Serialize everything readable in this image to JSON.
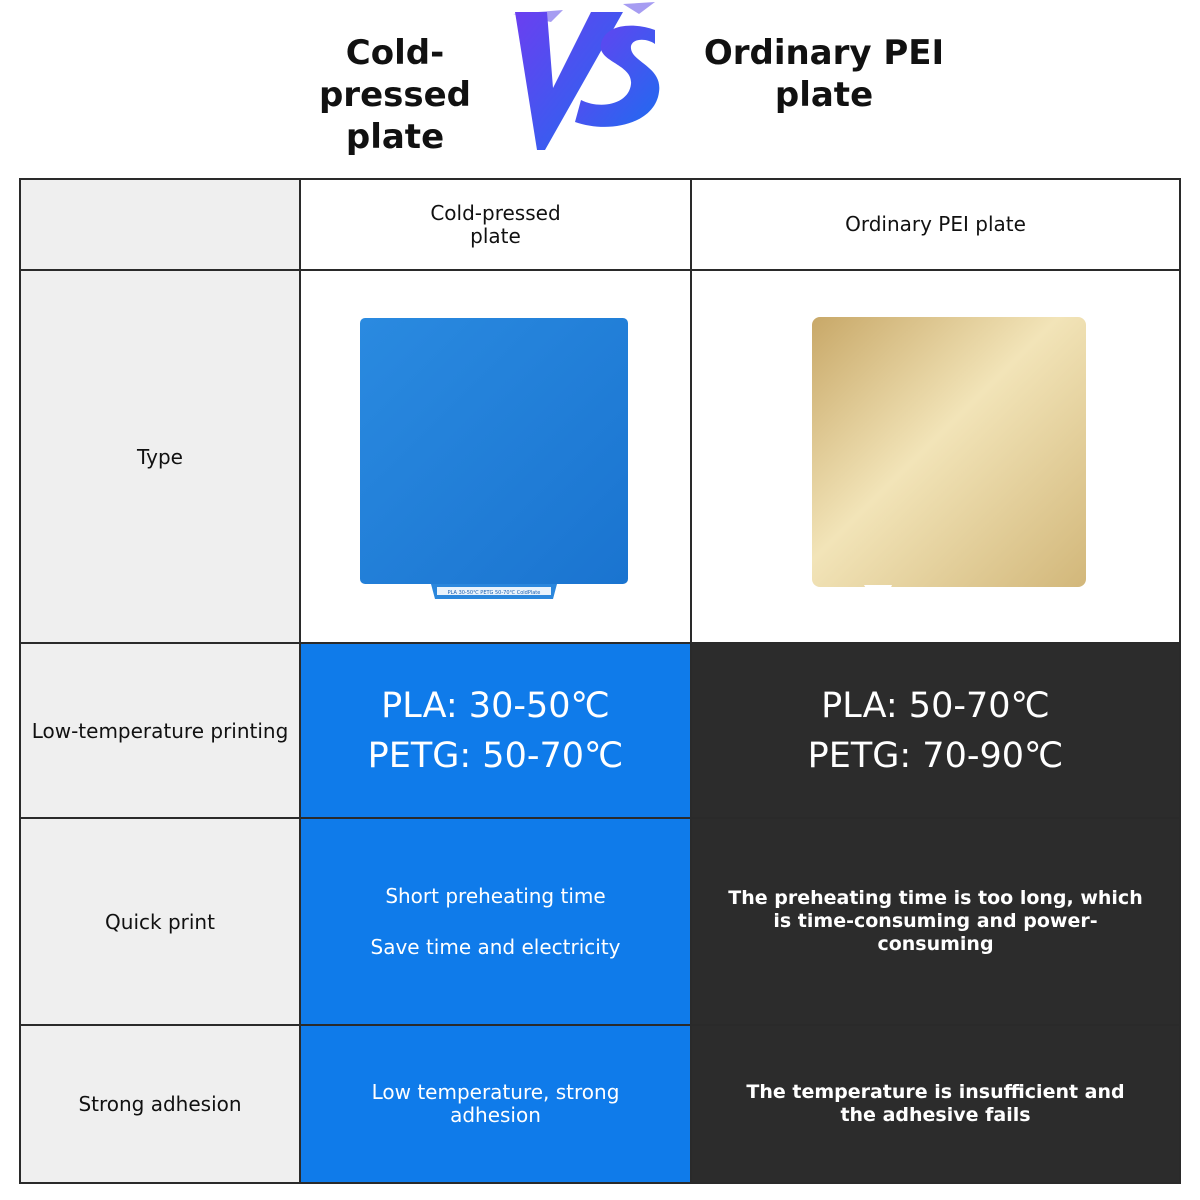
{
  "header": {
    "left_title": "Cold-pressed plate",
    "vs_text": "VS",
    "right_title": "Ordinary PEI plate"
  },
  "table": {
    "columns": [
      "",
      "Cold-pressed plate",
      "Ordinary PEI plate"
    ],
    "rows": {
      "type": {
        "label": "Type"
      },
      "low_temp": {
        "label": "Low-temperature printing",
        "cold": [
          "PLA: 30-50℃",
          "PETG: 50-70℃"
        ],
        "pei": [
          "PLA: 50-70℃",
          "PETG: 70-90℃"
        ]
      },
      "quick_print": {
        "label": "Quick print",
        "cold": [
          "Short preheating time",
          "Save time and electricity"
        ],
        "pei": "The preheating time is too long, which is time-consuming and power-consuming"
      },
      "adhesion": {
        "label": "Strong adhesion",
        "cold": "Low temperature, strong adhesion",
        "pei": "The temperature is insufficient and the adhesive fails"
      }
    }
  },
  "images": {
    "cold_plate_tab_text": "PLA 30-50℃ PETG 50-70℃ ColdPlate",
    "cold_plate_color": "#1a7fd8",
    "pei_plate_color": "#d8c28a"
  },
  "colors": {
    "accent_blue": "#0f7bea",
    "dark_cell": "#2c2c2c",
    "label_bg": "#efefef",
    "vs_gradient_start": "#6b3ff0",
    "vs_gradient_end": "#1f6bf0"
  }
}
